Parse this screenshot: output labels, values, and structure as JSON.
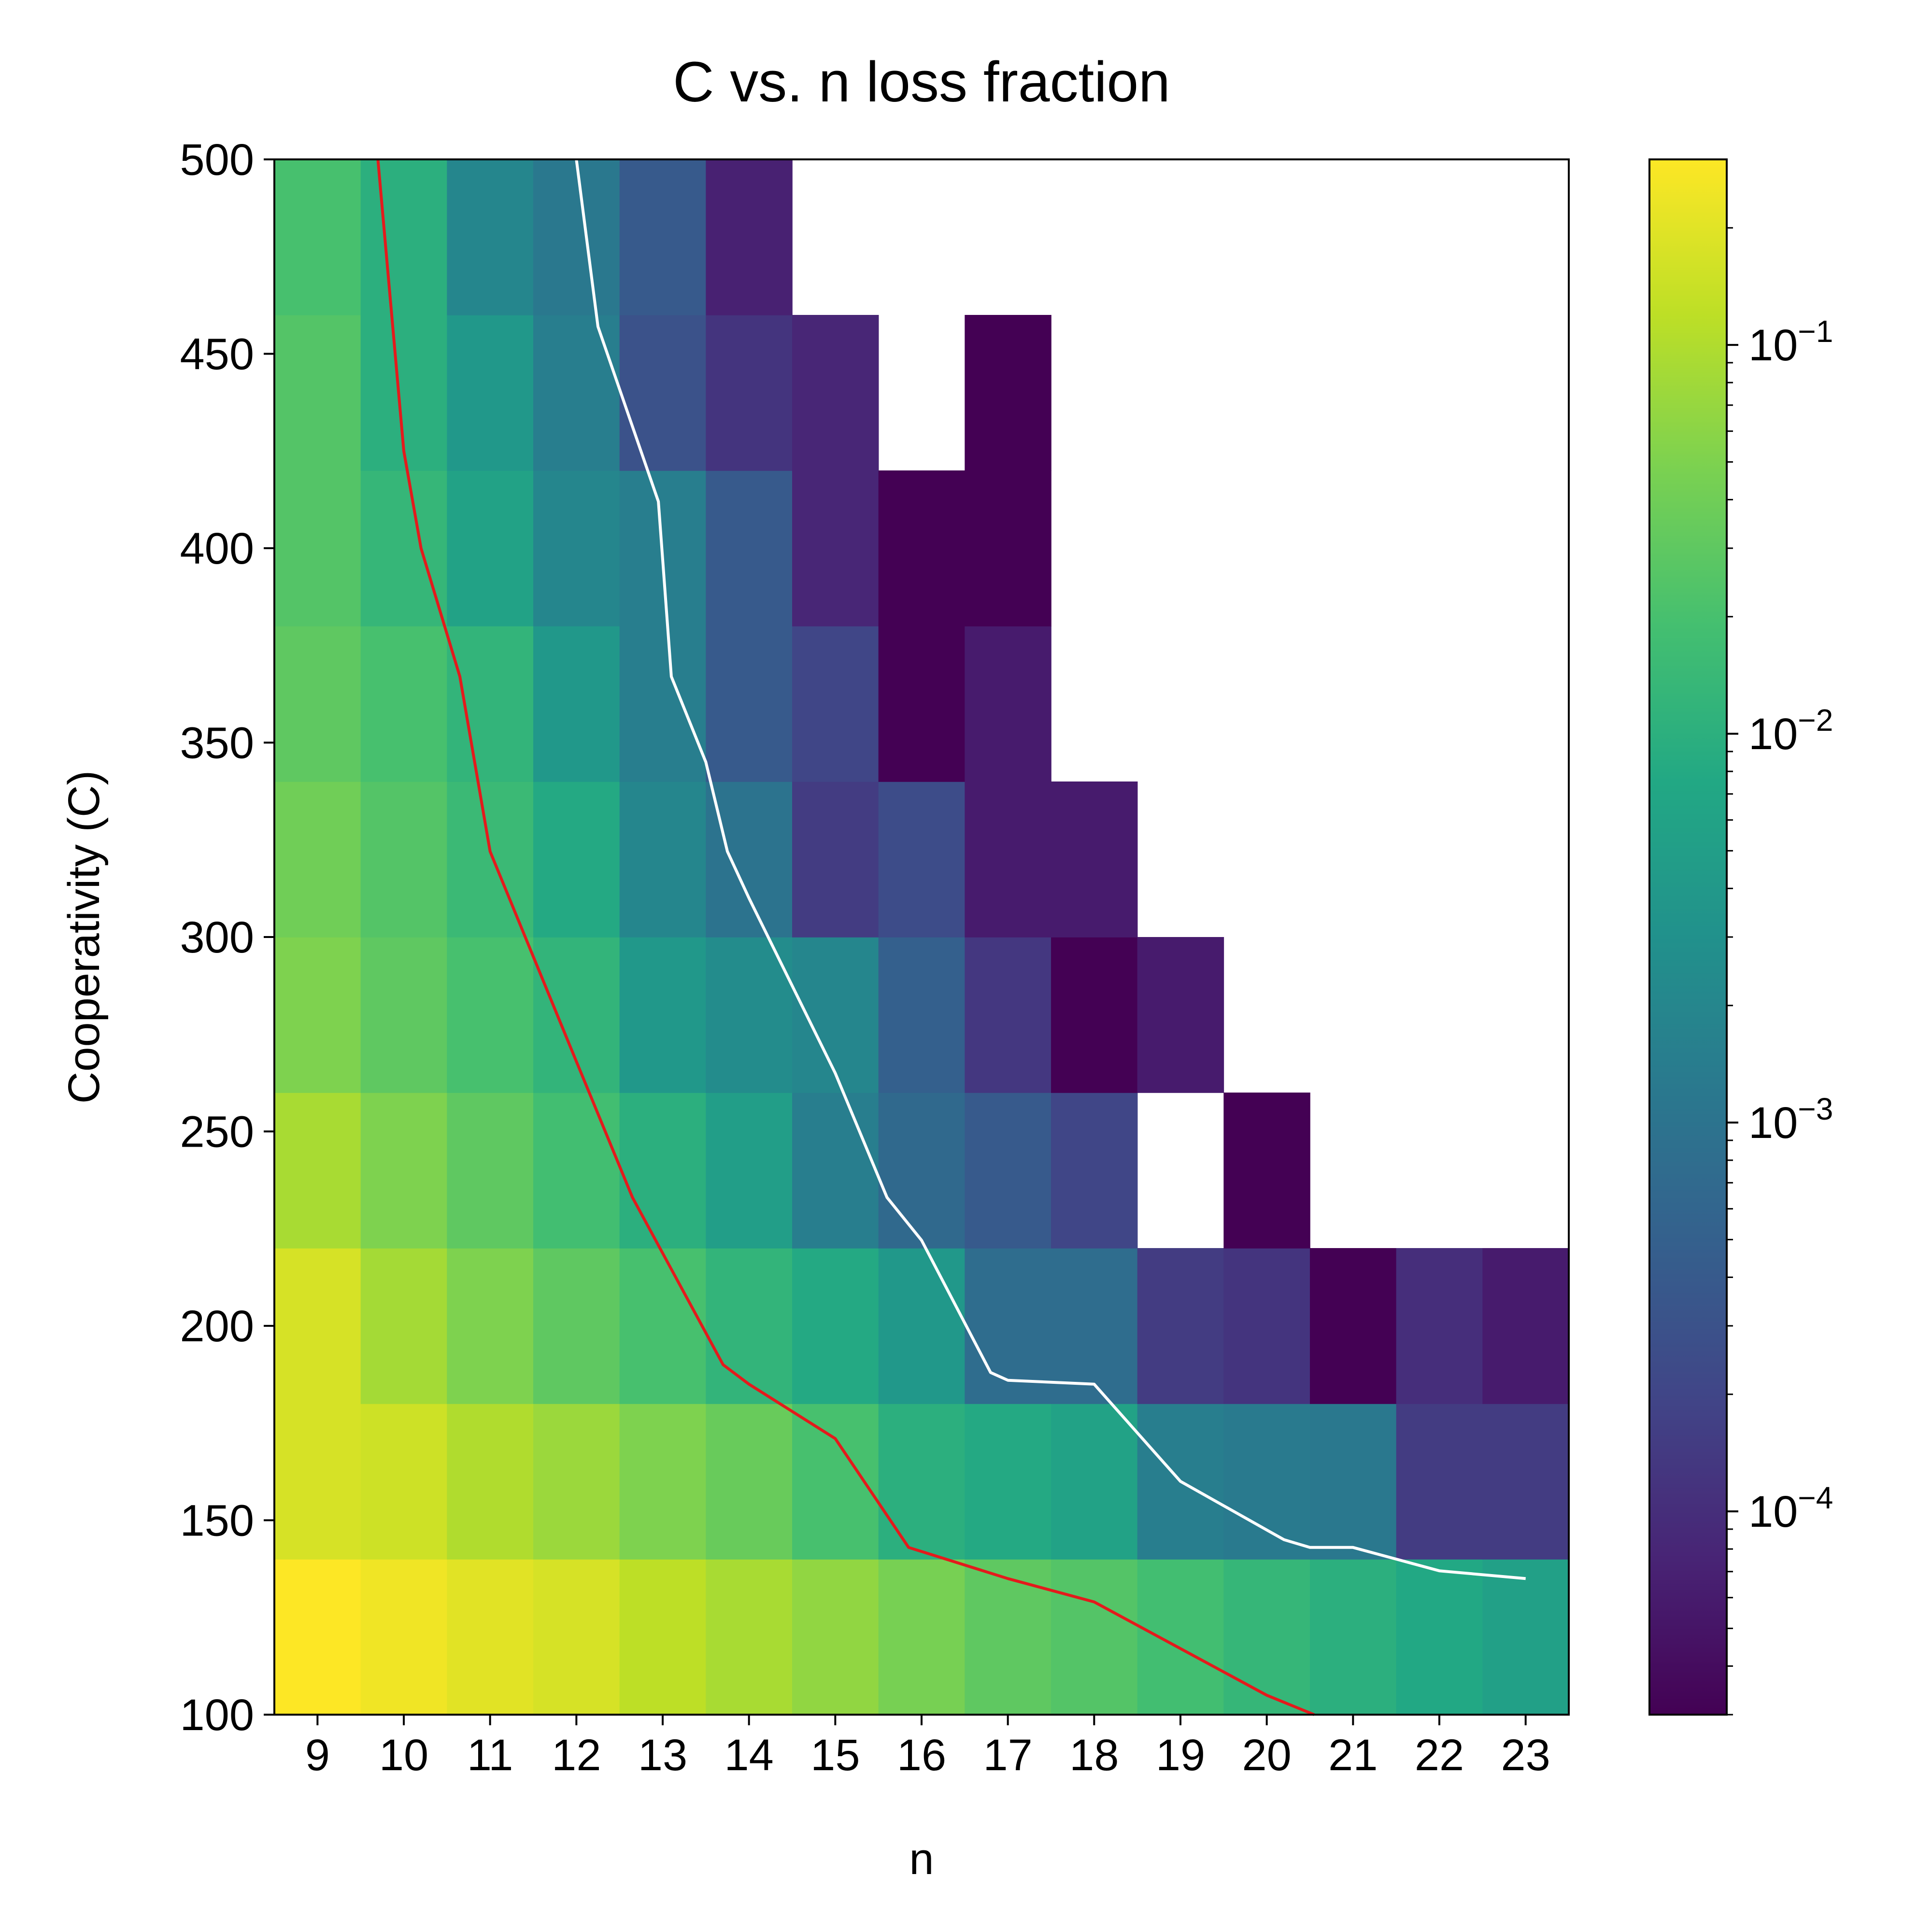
{
  "chart_data": {
    "type": "heatmap",
    "title": "C vs. n loss fraction",
    "xlabel": "n",
    "ylabel": "Cooperativity (C)",
    "x": [
      9,
      10,
      11,
      12,
      13,
      14,
      15,
      16,
      17,
      18,
      19,
      20,
      21,
      22,
      23
    ],
    "y": [
      100,
      140,
      180,
      220,
      260,
      300,
      340,
      380,
      420,
      460
    ],
    "ylim": [
      100,
      500
    ],
    "yticks": [
      100,
      150,
      200,
      250,
      300,
      350,
      400,
      450,
      500
    ],
    "color_scale": "log",
    "colormap": "viridis",
    "clim": [
      3e-05,
      0.3
    ],
    "colorbar_ticks": [
      {
        "value": 0.1,
        "base": "10",
        "exp": "−1"
      },
      {
        "value": 0.01,
        "base": "10",
        "exp": "−2"
      },
      {
        "value": 0.001,
        "base": "10",
        "exp": "−3"
      },
      {
        "value": 0.0001,
        "base": "10",
        "exp": "−4"
      }
    ],
    "z": [
      [
        0.3,
        0.25,
        0.2,
        0.17,
        0.12,
        0.09,
        0.065,
        0.045,
        0.03,
        0.025,
        0.018,
        0.013,
        0.01,
        0.0075,
        0.0055
      ],
      [
        0.17,
        0.15,
        0.1,
        0.075,
        0.05,
        0.035,
        0.02,
        0.01,
        0.008,
        0.006,
        0.0015,
        0.0013,
        0.0012,
        0.00015,
        0.00015
      ],
      [
        0.17,
        0.085,
        0.05,
        0.03,
        0.02,
        0.012,
        0.008,
        0.004,
        0.0008,
        0.0008,
        0.00015,
        0.00012,
        3e-05,
        0.0001,
        6e-05
      ],
      [
        0.09,
        0.05,
        0.03,
        0.018,
        0.01,
        0.005,
        0.0015,
        0.0007,
        0.0004,
        0.0002,
        null,
        3e-05,
        null,
        null,
        null
      ],
      [
        0.05,
        0.03,
        0.02,
        0.012,
        0.004,
        0.0025,
        0.002,
        0.0005,
        0.00013,
        3e-05,
        6e-05,
        null,
        null,
        null,
        null
      ],
      [
        0.04,
        0.025,
        0.015,
        0.008,
        0.002,
        0.001,
        0.00015,
        0.00025,
        6e-05,
        6e-05,
        null,
        null,
        null,
        null,
        null
      ],
      [
        0.03,
        0.02,
        0.012,
        0.004,
        0.0015,
        0.0004,
        0.0002,
        3e-05,
        6e-05,
        null,
        null,
        null,
        null,
        null,
        null
      ],
      [
        0.025,
        0.013,
        0.006,
        0.002,
        0.0015,
        0.0004,
        8e-05,
        3e-05,
        3e-05,
        null,
        null,
        null,
        null,
        null,
        null
      ],
      [
        0.025,
        0.01,
        0.004,
        0.0015,
        0.0003,
        0.00012,
        8e-05,
        null,
        3e-05,
        null,
        null,
        null,
        null,
        null,
        null
      ],
      [
        0.02,
        0.01,
        0.002,
        0.0012,
        0.0004,
        7e-05,
        null,
        null,
        null,
        null,
        null,
        null,
        null,
        null,
        null
      ]
    ],
    "series": [
      {
        "color": "#e41a1c",
        "points": [
          [
            9.7,
            500
          ],
          [
            10.0,
            425
          ],
          [
            10.2,
            400
          ],
          [
            10.65,
            367
          ],
          [
            11.0,
            322
          ],
          [
            12.0,
            268
          ],
          [
            12.65,
            233
          ],
          [
            13.7,
            190
          ],
          [
            14.0,
            185
          ],
          [
            15.0,
            171
          ],
          [
            15.85,
            143
          ],
          [
            17.0,
            135
          ],
          [
            18.0,
            129
          ],
          [
            20.0,
            105
          ],
          [
            20.55,
            100
          ]
        ]
      },
      {
        "color": "#ffffff",
        "points": [
          [
            12.0,
            500
          ],
          [
            12.25,
            457
          ],
          [
            12.95,
            412
          ],
          [
            13.1,
            367
          ],
          [
            13.5,
            345
          ],
          [
            13.75,
            322
          ],
          [
            14.0,
            310
          ],
          [
            15.0,
            265
          ],
          [
            15.6,
            233
          ],
          [
            16.0,
            222
          ],
          [
            16.8,
            188
          ],
          [
            17.0,
            186
          ],
          [
            18.0,
            185
          ],
          [
            19.0,
            160
          ],
          [
            20.2,
            145
          ],
          [
            20.5,
            143
          ],
          [
            21.0,
            143
          ],
          [
            21.5,
            140
          ],
          [
            22.0,
            137
          ],
          [
            23.0,
            135
          ]
        ]
      }
    ]
  }
}
